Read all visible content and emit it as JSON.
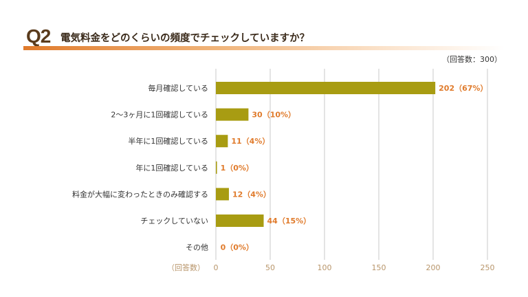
{
  "header": {
    "qnum": "Q2",
    "title": "電気料金をどのくらいの頻度でチェックしていますか？",
    "respondents": "（回答数：300）"
  },
  "colors": {
    "bar": "#a89c12",
    "grid": "#d3d3d3",
    "accent": "#e07b2c"
  },
  "chart_data": {
    "type": "bar",
    "orientation": "horizontal",
    "title": "電気料金をどのくらいの頻度でチェックしていますか？",
    "xlabel": "（回答数）",
    "ylabel": "",
    "xlim": [
      0,
      250
    ],
    "ticks": [
      0,
      50,
      100,
      150,
      200,
      250
    ],
    "grid": true,
    "categories": [
      "毎月確認している",
      "2〜3ヶ月に1回確認している",
      "半年に1回確認している",
      "年に1回確認している",
      "料金が大幅に変わったときのみ確認する",
      "チェックしていない",
      "その他"
    ],
    "values": [
      202,
      30,
      11,
      1,
      12,
      44,
      0
    ],
    "data_labels": [
      "202（67%）",
      "30（10%）",
      "11（4%）",
      "1（0%）",
      "12（4%）",
      "44（15%）",
      "0（0%）"
    ]
  }
}
